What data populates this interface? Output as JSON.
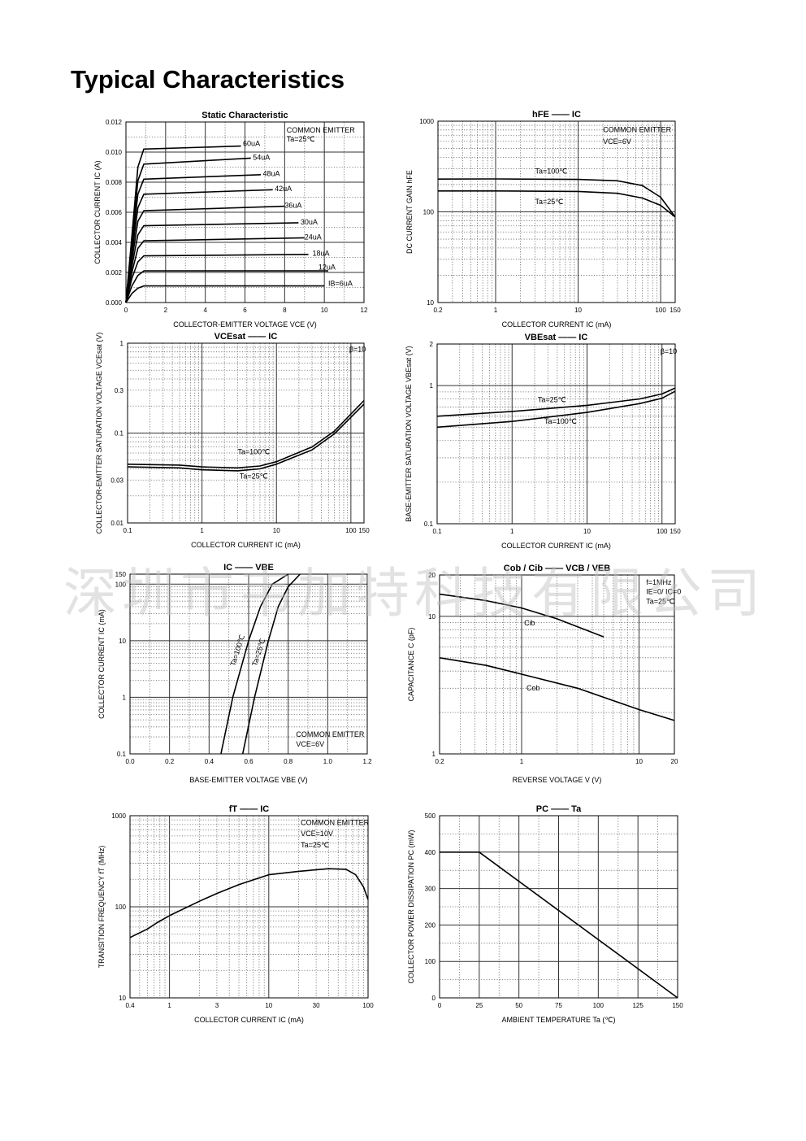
{
  "page": {
    "title": "Typical Characteristics",
    "watermark": "深圳市韦加特科技有限公司"
  },
  "chart_data": [
    {
      "type": "line",
      "title": "Static Characteristic",
      "xlabel": "COLLECTOR-EMITTER VOLTAGE   VCE   (V)",
      "ylabel": "COLLECTOR CURRENT   IC   (A)",
      "xscale": "linear",
      "yscale": "linear",
      "xlim": [
        0,
        12
      ],
      "ylim": [
        0,
        0.012
      ],
      "grid": true,
      "xticks": [
        0,
        2,
        4,
        6,
        8,
        10,
        12
      ],
      "xtick_labels": [
        "0",
        "2",
        "4",
        "6",
        "8",
        "10",
        "12"
      ],
      "yticks": [
        0,
        0.002,
        0.004,
        0.006,
        0.008,
        0.01,
        0.012
      ],
      "ytick_labels": [
        "0.000",
        "0.002",
        "0.004",
        "0.006",
        "0.008",
        "0.010",
        "0.012"
      ],
      "notes": [
        {
          "text": "COMMON EMITTER",
          "x": 8.1,
          "y": 0.0113
        },
        {
          "text": "Ta=25℃",
          "x": 8.1,
          "y": 0.0107
        }
      ],
      "series": [
        {
          "name": "IB=6uA",
          "x": [
            0,
            0.3,
            0.6,
            0.9,
            10
          ],
          "y": [
            0,
            0.0006,
            0.00095,
            0.0011,
            0.0011
          ],
          "label": {
            "text": "IB=6uA",
            "x": 10.2,
            "y": 0.0011
          }
        },
        {
          "name": "12uA",
          "x": [
            0,
            0.3,
            0.6,
            0.9,
            10.2
          ],
          "y": [
            0,
            0.0011,
            0.0018,
            0.0021,
            0.0021
          ],
          "label": {
            "text": "12uA",
            "x": 9.7,
            "y": 0.0022
          }
        },
        {
          "name": "18uA",
          "x": [
            0,
            0.3,
            0.6,
            0.9,
            9.2
          ],
          "y": [
            0,
            0.0016,
            0.0027,
            0.0031,
            0.0032
          ],
          "label": {
            "text": "18uA",
            "x": 9.4,
            "y": 0.0031
          }
        },
        {
          "name": "24uA",
          "x": [
            0,
            0.3,
            0.6,
            0.9,
            9.0
          ],
          "y": [
            0,
            0.002,
            0.0036,
            0.0041,
            0.0043
          ],
          "label": {
            "text": "24uA",
            "x": 9.0,
            "y": 0.0042
          }
        },
        {
          "name": "30uA",
          "x": [
            0,
            0.3,
            0.6,
            0.9,
            8.7
          ],
          "y": [
            0,
            0.0024,
            0.0045,
            0.0051,
            0.0053
          ],
          "label": {
            "text": "30uA",
            "x": 8.8,
            "y": 0.0052
          }
        },
        {
          "name": "36uA",
          "x": [
            0,
            0.3,
            0.6,
            0.9,
            8.0
          ],
          "y": [
            0,
            0.0028,
            0.0054,
            0.0061,
            0.0064
          ],
          "label": {
            "text": "36uA",
            "x": 8.0,
            "y": 0.0063
          }
        },
        {
          "name": "42uA",
          "x": [
            0,
            0.3,
            0.6,
            0.9,
            7.4
          ],
          "y": [
            0,
            0.0032,
            0.0063,
            0.0072,
            0.0075
          ],
          "label": {
            "text": "42uA",
            "x": 7.5,
            "y": 0.0074
          }
        },
        {
          "name": "48uA",
          "x": [
            0,
            0.3,
            0.6,
            0.9,
            6.8
          ],
          "y": [
            0,
            0.0036,
            0.0072,
            0.0082,
            0.0085
          ],
          "label": {
            "text": "48uA",
            "x": 6.9,
            "y": 0.0084
          }
        },
        {
          "name": "54uA",
          "x": [
            0,
            0.3,
            0.6,
            0.9,
            6.3
          ],
          "y": [
            0,
            0.004,
            0.0081,
            0.0092,
            0.0096
          ],
          "label": {
            "text": "54uA",
            "x": 6.4,
            "y": 0.0095
          }
        },
        {
          "name": "60uA",
          "x": [
            0,
            0.3,
            0.6,
            0.9,
            5.8
          ],
          "y": [
            0,
            0.0044,
            0.009,
            0.0102,
            0.0104
          ],
          "label": {
            "text": "60uA",
            "x": 5.9,
            "y": 0.0104
          }
        }
      ]
    },
    {
      "type": "line",
      "title": "hFE  ——  IC",
      "xlabel": "COLLECTOR CURRENT   IC   (mA)",
      "ylabel": "DC CURRENT GAIN   hFE",
      "xscale": "log",
      "yscale": "log",
      "xlim": [
        0.2,
        150
      ],
      "ylim": [
        10,
        1000
      ],
      "grid": true,
      "xticks": [
        0.2,
        1,
        10,
        100,
        150
      ],
      "xtick_labels": [
        "0.2",
        "1",
        "10",
        "100",
        "150"
      ],
      "yticks": [
        10,
        100,
        1000
      ],
      "ytick_labels": [
        "10",
        "100",
        "1000"
      ],
      "notes": [
        {
          "text": "COMMON EMITTER",
          "x": 20,
          "y": 760
        },
        {
          "text": "VCE=6V",
          "x": 20,
          "y": 560
        }
      ],
      "series": [
        {
          "name": "Ta=100℃",
          "x": [
            0.2,
            1,
            10,
            30,
            60,
            100,
            150
          ],
          "y": [
            230,
            231,
            228,
            220,
            195,
            145,
            88
          ],
          "label": {
            "text": "Ta=100℃",
            "x": 3.0,
            "y": 265
          }
        },
        {
          "name": "Ta=25℃",
          "x": [
            0.2,
            1,
            10,
            30,
            60,
            100,
            150
          ],
          "y": [
            170,
            170,
            168,
            160,
            142,
            118,
            88
          ],
          "label": {
            "text": "Ta=25℃",
            "x": 3.0,
            "y": 122
          }
        }
      ]
    },
    {
      "type": "line",
      "title": "VCEsat  ——  IC",
      "xlabel": "COLLECTOR CURRENT   IC   (mA)",
      "ylabel": "COLLECTOR-EMITTER SATURATION VOLTAGE   VCEsat   (V)",
      "xscale": "log",
      "yscale": "log",
      "xlim": [
        0.1,
        150
      ],
      "ylim": [
        0.01,
        1
      ],
      "grid": true,
      "xticks": [
        0.1,
        1,
        10,
        100,
        150
      ],
      "xtick_labels": [
        "0.1",
        "1",
        "10",
        "100",
        "150"
      ],
      "yticks": [
        0.01,
        0.03,
        0.1,
        0.3,
        1
      ],
      "ytick_labels": [
        "0.01",
        "0.03",
        "0.1",
        "0.3",
        "1"
      ],
      "notes": [
        {
          "text": "β=10",
          "x": 95,
          "y": 0.8
        }
      ],
      "series": [
        {
          "name": "Ta=100℃",
          "x": [
            0.1,
            0.5,
            1,
            3,
            6,
            10,
            30,
            60,
            150
          ],
          "y": [
            0.045,
            0.044,
            0.042,
            0.041,
            0.043,
            0.048,
            0.07,
            0.105,
            0.23
          ],
          "label": {
            "text": "Ta=100℃",
            "x": 3.0,
            "y": 0.058
          }
        },
        {
          "name": "Ta=25℃",
          "x": [
            0.1,
            0.5,
            1,
            3,
            6,
            10,
            30,
            60,
            150
          ],
          "y": [
            0.042,
            0.041,
            0.039,
            0.038,
            0.04,
            0.045,
            0.065,
            0.098,
            0.21
          ],
          "label": {
            "text": "Ta=25℃",
            "x": 3.2,
            "y": 0.031
          }
        }
      ]
    },
    {
      "type": "line",
      "title": "VBEsat  ——  IC",
      "xlabel": "COLLECTOR CURRENT   IC   (mA)",
      "ylabel": "BASE-EMITTER SATURATION VOLTAGE   VBEsat   (V)",
      "xscale": "log",
      "yscale": "log",
      "xlim": [
        0.1,
        150
      ],
      "ylim": [
        0.1,
        2
      ],
      "grid": true,
      "xticks": [
        0.1,
        1,
        10,
        100,
        150
      ],
      "xtick_labels": [
        "0.1",
        "1",
        "10",
        "100",
        "150"
      ],
      "yticks": [
        0.1,
        1,
        2
      ],
      "ytick_labels": [
        "0.1",
        "1",
        "2"
      ],
      "notes": [
        {
          "text": "β=10",
          "x": 95,
          "y": 1.7
        }
      ],
      "series": [
        {
          "name": "Ta=25℃",
          "x": [
            0.1,
            1,
            10,
            50,
            100,
            150
          ],
          "y": [
            0.6,
            0.65,
            0.72,
            0.8,
            0.87,
            0.96
          ],
          "label": {
            "text": "Ta=25℃",
            "x": 2.2,
            "y": 0.76
          }
        },
        {
          "name": "Ta=100℃",
          "x": [
            0.1,
            1,
            10,
            50,
            100,
            150
          ],
          "y": [
            0.5,
            0.55,
            0.64,
            0.74,
            0.81,
            0.91
          ],
          "label": {
            "text": "Ta=100℃",
            "x": 2.7,
            "y": 0.53
          }
        }
      ]
    },
    {
      "type": "line",
      "title": "IC  ——  VBE",
      "xlabel": "BASE-EMITTER VOLTAGE   VBE   (V)",
      "ylabel": "COLLECTOR CURRENT   IC   (mA)",
      "xscale": "linear",
      "yscale": "log",
      "xlim": [
        0,
        1.2
      ],
      "ylim": [
        0.1,
        150
      ],
      "grid": true,
      "xticks": [
        0,
        0.2,
        0.4,
        0.6,
        0.8,
        1.0,
        1.2
      ],
      "xtick_labels": [
        "0.0",
        "0.2",
        "0.4",
        "0.6",
        "0.8",
        "1.0",
        "1.2"
      ],
      "yticks": [
        0.1,
        1,
        10,
        100,
        150
      ],
      "ytick_labels": [
        "0.1",
        "1",
        "10",
        "100",
        "150"
      ],
      "notes": [
        {
          "text": "COMMON EMITTER",
          "x": 0.84,
          "y": 0.2
        },
        {
          "text": "VCE=6V",
          "x": 0.84,
          "y": 0.135
        }
      ],
      "series": [
        {
          "name": "Ta=100℃",
          "x": [
            0.46,
            0.52,
            0.6,
            0.66,
            0.72,
            0.8
          ],
          "y": [
            0.1,
            1,
            10,
            40,
            100,
            150
          ],
          "label": {
            "text": "Ta=100℃",
            "x": 0.53,
            "y": 3.5,
            "rotate": -72
          }
        },
        {
          "name": "Ta=25℃",
          "x": [
            0.57,
            0.63,
            0.7,
            0.75,
            0.8,
            0.86
          ],
          "y": [
            0.1,
            1,
            10,
            40,
            90,
            150
          ],
          "label": {
            "text": "Ta=25℃",
            "x": 0.64,
            "y": 3.5,
            "rotate": -72
          }
        }
      ]
    },
    {
      "type": "line",
      "title": "Cob / Cib  ——  VCB / VEB",
      "xlabel": "REVERSE VOLTAGE   V   (V)",
      "ylabel": "CAPACITANCE   C   (pF)",
      "xscale": "log",
      "yscale": "log",
      "xlim": [
        0.2,
        20
      ],
      "ylim": [
        1,
        20
      ],
      "grid": true,
      "xticks": [
        0.2,
        1,
        10,
        20
      ],
      "xtick_labels": [
        "0.2",
        "1",
        "10",
        "20"
      ],
      "yticks": [
        1,
        10,
        20
      ],
      "ytick_labels": [
        "1",
        "10",
        "20"
      ],
      "notes": [
        {
          "text": "f=1MHz",
          "x": 11.5,
          "y": 17
        },
        {
          "text": "IE=0/ IC=0",
          "x": 11.5,
          "y": 14.5
        },
        {
          "text": "Ta=25℃",
          "x": 11.5,
          "y": 12.3
        }
      ],
      "series": [
        {
          "name": "Cib",
          "x": [
            0.2,
            0.5,
            1,
            2,
            5
          ],
          "y": [
            14.5,
            13,
            11.5,
            9.6,
            7.1
          ],
          "label": {
            "text": "Cib",
            "x": 1.05,
            "y": 8.6
          }
        },
        {
          "name": "Cob",
          "x": [
            0.2,
            0.5,
            1,
            3,
            10,
            20
          ],
          "y": [
            5,
            4.4,
            3.8,
            3.0,
            2.1,
            1.75
          ],
          "label": {
            "text": "Cob",
            "x": 1.1,
            "y": 2.9
          }
        }
      ]
    },
    {
      "type": "line",
      "title": "fT  ——  IC",
      "xlabel": "COLLECTOR CURRENT   IC   (mA)",
      "ylabel": "TRANSITION FREQUENCY   fT   (MHz)",
      "xscale": "log",
      "yscale": "log",
      "xlim": [
        0.4,
        100
      ],
      "ylim": [
        10,
        1000
      ],
      "grid": true,
      "xticks": [
        0.4,
        1,
        3,
        10,
        30,
        100
      ],
      "xtick_labels": [
        "0.4",
        "1",
        "3",
        "10",
        "30",
        "100"
      ],
      "yticks": [
        10,
        100,
        1000
      ],
      "ytick_labels": [
        "10",
        "100",
        "1000"
      ],
      "notes": [
        {
          "text": "COMMON EMITTER",
          "x": 21,
          "y": 790
        },
        {
          "text": "VCE=10V",
          "x": 21,
          "y": 600
        },
        {
          "text": "Ta=25℃",
          "x": 21,
          "y": 450
        }
      ],
      "series": [
        {
          "x": [
            0.4,
            0.6,
            0.75,
            1,
            2,
            3,
            5,
            10,
            20,
            40,
            60,
            75,
            90,
            100
          ],
          "y": [
            46,
            57,
            67,
            80,
            115,
            140,
            175,
            225,
            245,
            262,
            258,
            225,
            165,
            120
          ]
        }
      ]
    },
    {
      "type": "line",
      "title": "PC  ——  Ta",
      "xlabel": "AMBIENT TEMPERATURE   Ta   (℃)",
      "ylabel": "COLLECTOR POWER DISSIPATION   PC   (mW)",
      "xscale": "linear",
      "yscale": "linear",
      "xlim": [
        0,
        150
      ],
      "ylim": [
        0,
        500
      ],
      "grid": true,
      "xticks": [
        0,
        25,
        50,
        75,
        100,
        125,
        150
      ],
      "xtick_labels": [
        "0",
        "25",
        "50",
        "75",
        "100",
        "125",
        "150"
      ],
      "yticks": [
        0,
        100,
        200,
        300,
        400,
        500
      ],
      "ytick_labels": [
        "0",
        "100",
        "200",
        "300",
        "400",
        "500"
      ],
      "notes": [],
      "series": [
        {
          "x": [
            0,
            25,
            150
          ],
          "y": [
            400,
            400,
            0
          ]
        }
      ]
    }
  ]
}
